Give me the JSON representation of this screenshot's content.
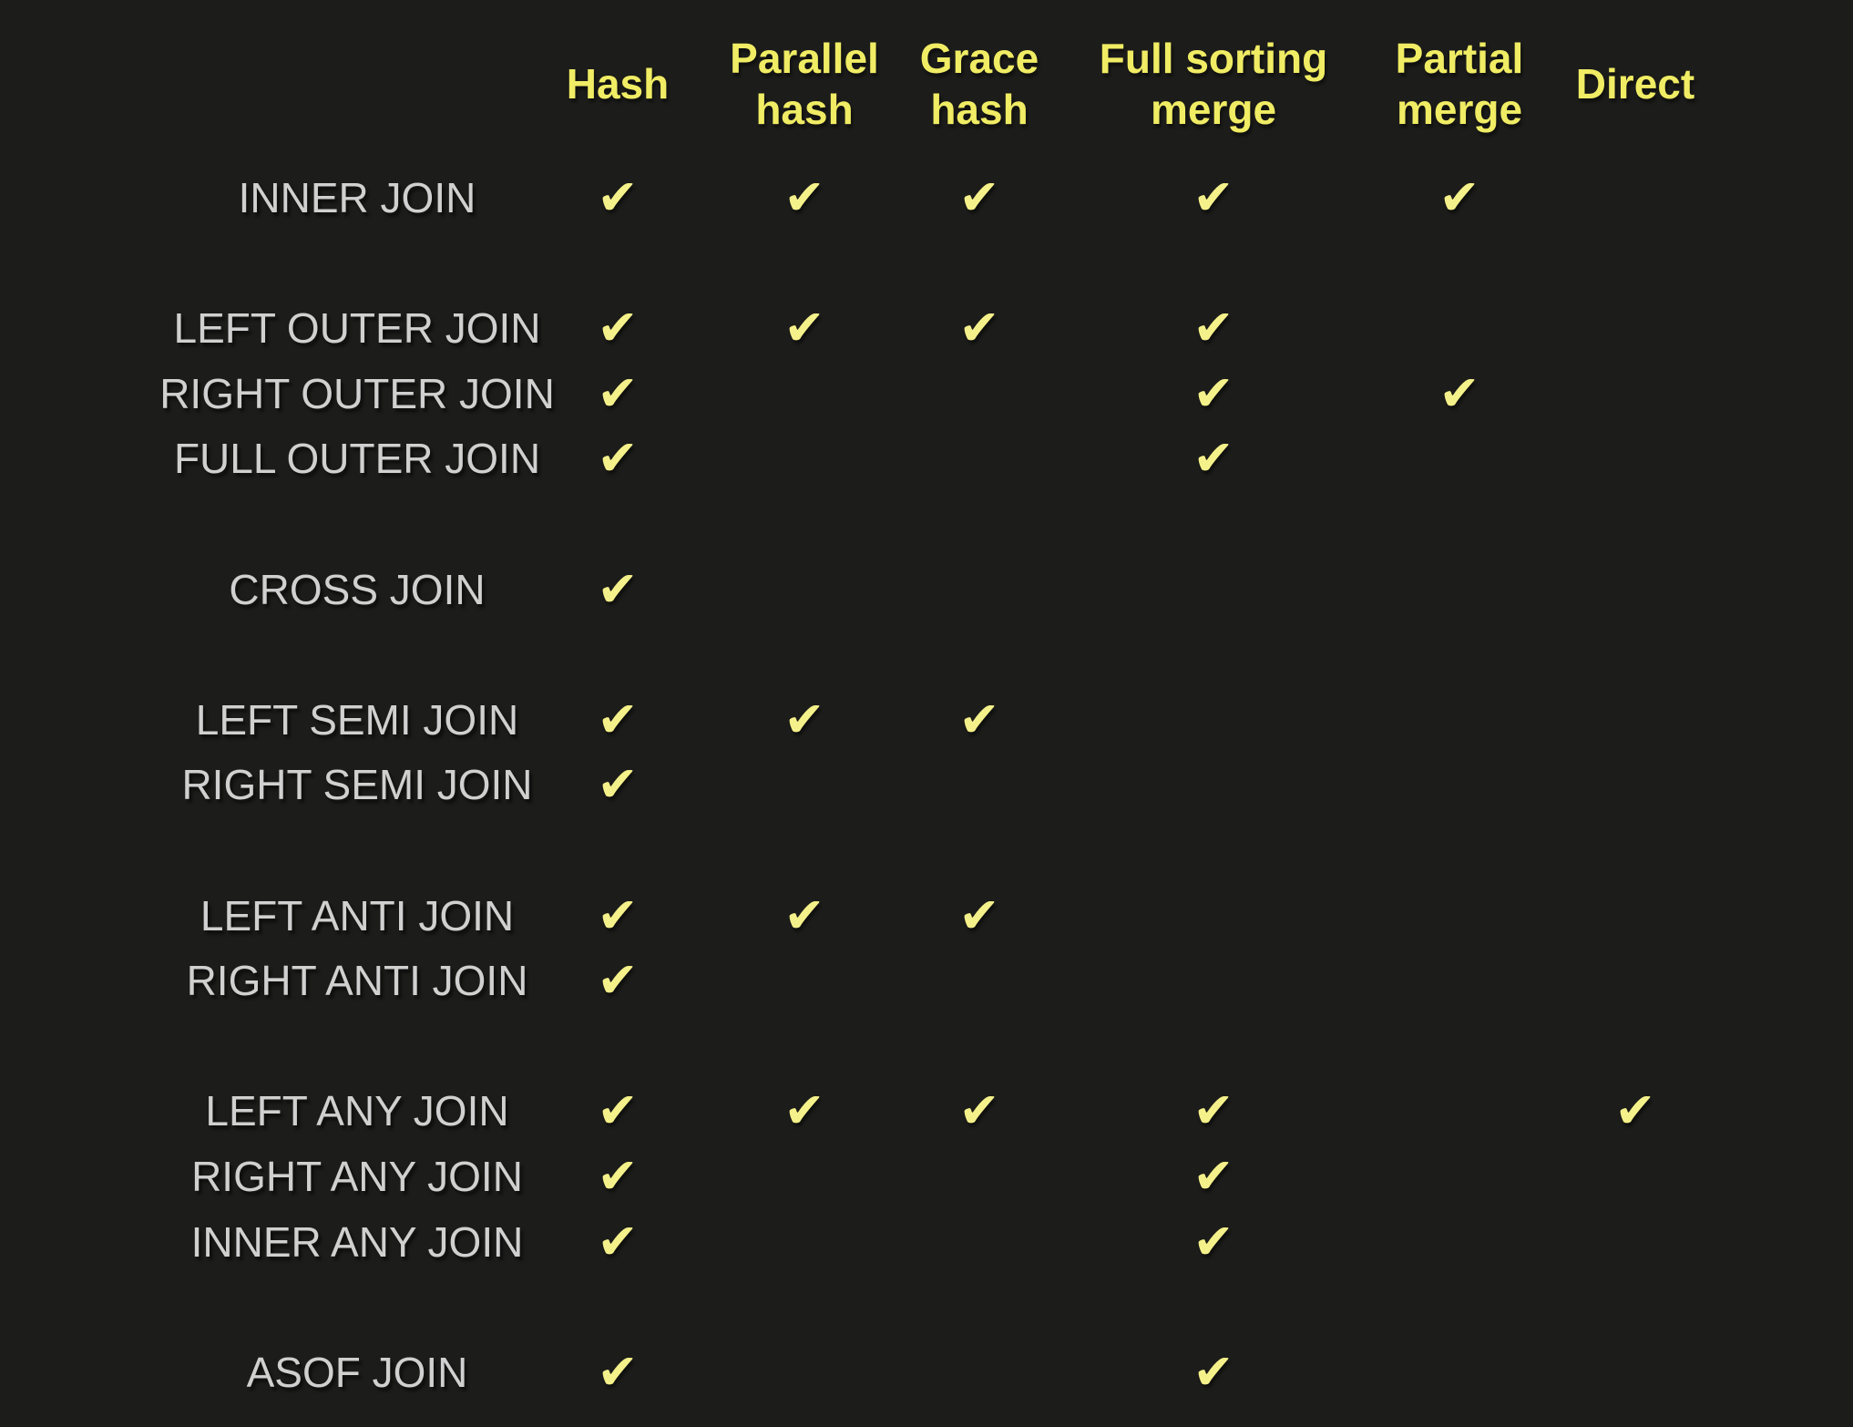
{
  "page": {
    "background_color": "#1c1c1a"
  },
  "table": {
    "check_glyph": "✔",
    "colors": {
      "header": "#f0ec64",
      "check": "#f5f18a",
      "row_label": "#d0d0d0"
    },
    "columns": [
      "Hash",
      "Parallel hash",
      "Grace hash",
      "Full sorting merge",
      "Partial merge",
      "Direct"
    ],
    "groups": [
      {
        "rows": [
          {
            "label": "INNER JOIN",
            "checks": [
              1,
              1,
              1,
              1,
              1,
              0
            ]
          }
        ]
      },
      {
        "rows": [
          {
            "label": "LEFT OUTER JOIN",
            "checks": [
              1,
              1,
              1,
              1,
              0,
              0
            ]
          },
          {
            "label": "RIGHT OUTER JOIN",
            "checks": [
              1,
              0,
              0,
              1,
              1,
              0
            ]
          },
          {
            "label": "FULL OUTER JOIN",
            "checks": [
              1,
              0,
              0,
              1,
              0,
              0
            ]
          }
        ]
      },
      {
        "rows": [
          {
            "label": "CROSS JOIN",
            "checks": [
              1,
              0,
              0,
              0,
              0,
              0
            ]
          }
        ]
      },
      {
        "rows": [
          {
            "label": "LEFT SEMI JOIN",
            "checks": [
              1,
              1,
              1,
              0,
              0,
              0
            ]
          },
          {
            "label": "RIGHT SEMI JOIN",
            "checks": [
              1,
              0,
              0,
              0,
              0,
              0
            ]
          }
        ]
      },
      {
        "rows": [
          {
            "label": "LEFT ANTI JOIN",
            "checks": [
              1,
              1,
              1,
              0,
              0,
              0
            ]
          },
          {
            "label": "RIGHT ANTI JOIN",
            "checks": [
              1,
              0,
              0,
              0,
              0,
              0
            ]
          }
        ]
      },
      {
        "rows": [
          {
            "label": "LEFT ANY JOIN",
            "checks": [
              1,
              1,
              1,
              1,
              0,
              1
            ]
          },
          {
            "label": "RIGHT ANY JOIN",
            "checks": [
              1,
              0,
              0,
              1,
              0,
              0
            ]
          },
          {
            "label": "INNER ANY JOIN",
            "checks": [
              1,
              0,
              0,
              1,
              0,
              0
            ]
          }
        ]
      },
      {
        "rows": [
          {
            "label": "ASOF JOIN",
            "checks": [
              1,
              0,
              0,
              1,
              0,
              0
            ]
          }
        ]
      }
    ]
  }
}
